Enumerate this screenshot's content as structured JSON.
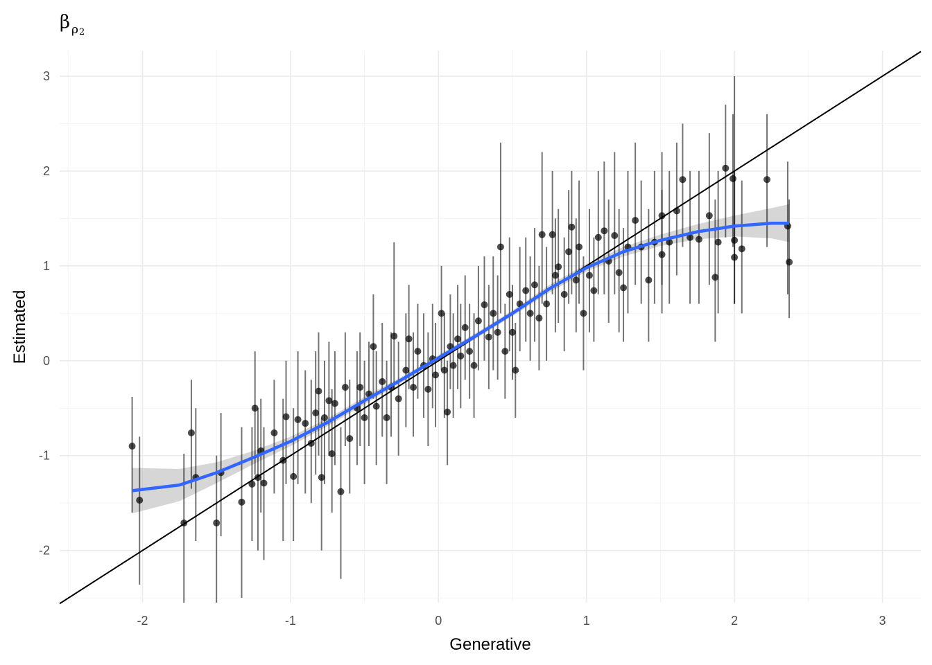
{
  "chart_data": {
    "type": "scatter",
    "title": "β",
    "title_subscript": "ρ",
    "title_subsubscript": "2",
    "xlabel": "Generative",
    "ylabel": "Estimated",
    "xlim": [
      -2.56,
      3.26
    ],
    "ylim": [
      -2.55,
      3.27
    ],
    "xticks": [
      -2,
      -1,
      0,
      1,
      2,
      3
    ],
    "yticks": [
      -2,
      -1,
      0,
      1,
      2,
      3
    ],
    "grid": true,
    "reference_line": {
      "slope": 1,
      "intercept": 0,
      "color": "#000000"
    },
    "smooth": {
      "color": "#3366ff",
      "band_color": "#cccccc",
      "points": [
        [
          -2.07,
          -1.37,
          0.24
        ],
        [
          -1.75,
          -1.31,
          0.17
        ],
        [
          -1.5,
          -1.18,
          0.11
        ],
        [
          -1.25,
          -1.02,
          0.07
        ],
        [
          -1,
          -0.85,
          0.05
        ],
        [
          -0.75,
          -0.65,
          0.04
        ],
        [
          -0.5,
          -0.42,
          0.04
        ],
        [
          -0.25,
          -0.2,
          0.03
        ],
        [
          0,
          0.03,
          0.03
        ],
        [
          0.25,
          0.26,
          0.03
        ],
        [
          0.5,
          0.5,
          0.03
        ],
        [
          0.75,
          0.76,
          0.04
        ],
        [
          1,
          0.98,
          0.04
        ],
        [
          1.25,
          1.15,
          0.05
        ],
        [
          1.5,
          1.27,
          0.06
        ],
        [
          1.75,
          1.36,
          0.08
        ],
        [
          2,
          1.42,
          0.11
        ],
        [
          2.25,
          1.45,
          0.16
        ],
        [
          2.37,
          1.45,
          0.2
        ]
      ]
    },
    "point_color": "#000000",
    "points": [
      [
        -2.07,
        -0.9,
        -1.6,
        -0.38
      ],
      [
        -2.02,
        -1.47,
        -2.36,
        -0.8
      ],
      [
        -1.72,
        -1.71,
        -2.55,
        -0.98
      ],
      [
        -1.67,
        -0.76,
        -1.35,
        -0.2
      ],
      [
        -1.64,
        -1.23,
        -1.9,
        -0.5
      ],
      [
        -1.5,
        -1.71,
        -2.55,
        -1.0
      ],
      [
        -1.47,
        -1.18,
        -1.85,
        -0.55
      ],
      [
        -1.33,
        -1.49,
        -2.5,
        -0.7
      ],
      [
        -1.26,
        -1.3,
        -1.9,
        -0.7
      ],
      [
        -1.24,
        -0.5,
        -1.2,
        0.1
      ],
      [
        -1.22,
        -1.23,
        -2.0,
        -0.5
      ],
      [
        -1.2,
        -0.95,
        -1.6,
        -0.4
      ],
      [
        -1.18,
        -1.29,
        -2.1,
        -0.7
      ],
      [
        -1.11,
        -0.76,
        -1.4,
        -0.2
      ],
      [
        -1.05,
        -1.05,
        -1.9,
        -0.4
      ],
      [
        -1.03,
        -0.59,
        -1.3,
        0.0
      ],
      [
        -0.98,
        -1.22,
        -1.9,
        -0.5
      ],
      [
        -0.95,
        -0.62,
        -1.3,
        0.1
      ],
      [
        -0.9,
        -0.66,
        -1.4,
        -0.1
      ],
      [
        -0.86,
        -0.87,
        -1.5,
        -0.2
      ],
      [
        -0.83,
        -0.55,
        -1.2,
        0.1
      ],
      [
        -0.81,
        -0.32,
        -1.0,
        0.3
      ],
      [
        -0.79,
        -1.23,
        -2.0,
        -0.6
      ],
      [
        -0.77,
        -0.6,
        -1.3,
        0.0
      ],
      [
        -0.74,
        -0.42,
        -1.0,
        0.2
      ],
      [
        -0.72,
        -0.98,
        -1.6,
        -0.3
      ],
      [
        -0.7,
        -0.45,
        -1.1,
        0.1
      ],
      [
        -0.66,
        -1.38,
        -2.3,
        -0.7
      ],
      [
        -0.63,
        -0.28,
        -0.9,
        0.3
      ],
      [
        -0.6,
        -0.82,
        -1.4,
        -0.2
      ],
      [
        -0.55,
        -0.5,
        -1.1,
        0.1
      ],
      [
        -0.53,
        -0.28,
        -0.9,
        0.3
      ],
      [
        -0.5,
        -0.6,
        -1.3,
        0.0
      ],
      [
        -0.47,
        -0.35,
        -0.9,
        0.2
      ],
      [
        -0.44,
        0.15,
        -0.4,
        0.7
      ],
      [
        -0.42,
        -0.48,
        -1.1,
        0.1
      ],
      [
        -0.38,
        -0.22,
        -0.8,
        0.4
      ],
      [
        -0.35,
        -0.6,
        -1.3,
        0.0
      ],
      [
        -0.32,
        -0.28,
        -0.8,
        0.3
      ],
      [
        -0.3,
        0.26,
        -0.3,
        1.25
      ],
      [
        -0.27,
        -0.4,
        -1.0,
        0.2
      ],
      [
        -0.22,
        -0.1,
        -0.7,
        0.5
      ],
      [
        -0.2,
        0.23,
        -0.3,
        0.8
      ],
      [
        -0.17,
        -0.28,
        -0.8,
        0.3
      ],
      [
        -0.14,
        0.1,
        -0.4,
        0.6
      ],
      [
        -0.1,
        -0.05,
        -0.6,
        0.5
      ],
      [
        -0.07,
        -0.3,
        -0.9,
        0.3
      ],
      [
        -0.04,
        0.02,
        -0.5,
        0.6
      ],
      [
        -0.02,
        -0.15,
        -0.7,
        0.4
      ],
      [
        0.02,
        0.5,
        -0.1,
        1.0
      ],
      [
        0.04,
        -0.1,
        -0.6,
        0.5
      ],
      [
        0.06,
        -0.54,
        -1.1,
        0.0
      ],
      [
        0.08,
        0.15,
        -0.3,
        0.7
      ],
      [
        0.1,
        -0.05,
        -0.6,
        0.5
      ],
      [
        0.13,
        0.23,
        -0.3,
        0.8
      ],
      [
        0.15,
        0.05,
        -0.5,
        0.6
      ],
      [
        0.18,
        0.35,
        -0.2,
        0.9
      ],
      [
        0.21,
        0.1,
        -0.4,
        0.6
      ],
      [
        0.24,
        -0.05,
        -0.6,
        0.5
      ],
      [
        0.27,
        0.42,
        -0.1,
        1.0
      ],
      [
        0.31,
        0.59,
        0.0,
        1.1
      ],
      [
        0.34,
        0.25,
        -0.3,
        0.8
      ],
      [
        0.37,
        0.5,
        -0.1,
        1.1
      ],
      [
        0.4,
        0.3,
        -0.2,
        0.9
      ],
      [
        0.42,
        1.2,
        0.5,
        2.3
      ],
      [
        0.45,
        0.1,
        -0.4,
        0.6
      ],
      [
        0.48,
        0.7,
        0.1,
        1.3
      ],
      [
        0.5,
        0.3,
        -0.2,
        0.8
      ],
      [
        0.52,
        -0.1,
        -0.6,
        0.4
      ],
      [
        0.55,
        0.6,
        0.1,
        1.2
      ],
      [
        0.59,
        0.74,
        0.2,
        1.3
      ],
      [
        0.62,
        0.5,
        0.0,
        1.1
      ],
      [
        0.65,
        0.8,
        0.2,
        1.4
      ],
      [
        0.68,
        0.45,
        -0.1,
        1.0
      ],
      [
        0.7,
        1.33,
        0.6,
        2.2
      ],
      [
        0.73,
        0.6,
        0.0,
        1.2
      ],
      [
        0.77,
        1.33,
        0.7,
        2.0
      ],
      [
        0.79,
        0.9,
        0.3,
        1.5
      ],
      [
        0.81,
        0.99,
        0.4,
        1.6
      ],
      [
        0.85,
        0.7,
        0.1,
        1.3
      ],
      [
        0.88,
        1.15,
        0.6,
        1.8
      ],
      [
        0.9,
        1.41,
        0.7,
        2.0
      ],
      [
        0.93,
        0.85,
        0.3,
        1.5
      ],
      [
        0.95,
        1.2,
        0.6,
        1.9
      ],
      [
        0.98,
        0.5,
        -0.1,
        1.1
      ],
      [
        1.02,
        0.9,
        0.3,
        1.6
      ],
      [
        1.05,
        0.74,
        0.2,
        1.3
      ],
      [
        1.08,
        1.3,
        0.7,
        2.0
      ],
      [
        1.12,
        1.37,
        0.7,
        2.1
      ],
      [
        1.15,
        1.05,
        0.4,
        1.7
      ],
      [
        1.19,
        1.32,
        0.7,
        2.2
      ],
      [
        1.22,
        0.93,
        0.3,
        1.6
      ],
      [
        1.25,
        0.77,
        0.2,
        1.4
      ],
      [
        1.28,
        1.2,
        0.5,
        2.0
      ],
      [
        1.33,
        1.48,
        0.8,
        2.3
      ],
      [
        1.37,
        1.2,
        0.6,
        1.9
      ],
      [
        1.42,
        0.85,
        0.2,
        1.6
      ],
      [
        1.46,
        1.25,
        0.6,
        2.0
      ],
      [
        1.51,
        1.53,
        0.8,
        2.2
      ],
      [
        1.51,
        1.12,
        0.5,
        1.8
      ],
      [
        1.56,
        1.25,
        0.6,
        2.0
      ],
      [
        1.61,
        1.58,
        0.9,
        2.3
      ],
      [
        1.65,
        1.91,
        1.2,
        2.5
      ],
      [
        1.7,
        1.3,
        0.6,
        2.0
      ],
      [
        1.76,
        1.28,
        0.6,
        2.0
      ],
      [
        1.83,
        1.53,
        0.8,
        2.4
      ],
      [
        1.87,
        0.88,
        0.2,
        1.7
      ],
      [
        1.89,
        1.25,
        0.5,
        2.0
      ],
      [
        1.94,
        2.03,
        1.3,
        2.7
      ],
      [
        1.99,
        1.92,
        1.2,
        2.6
      ],
      [
        2.0,
        1.09,
        0.6,
        2.0
      ],
      [
        2.0,
        1.27,
        0.6,
        3.0
      ],
      [
        2.05,
        1.18,
        0.5,
        1.9
      ],
      [
        2.22,
        1.91,
        1.2,
        2.6
      ],
      [
        2.36,
        1.42,
        0.7,
        2.1
      ],
      [
        2.37,
        1.04,
        0.45,
        1.7
      ]
    ]
  }
}
